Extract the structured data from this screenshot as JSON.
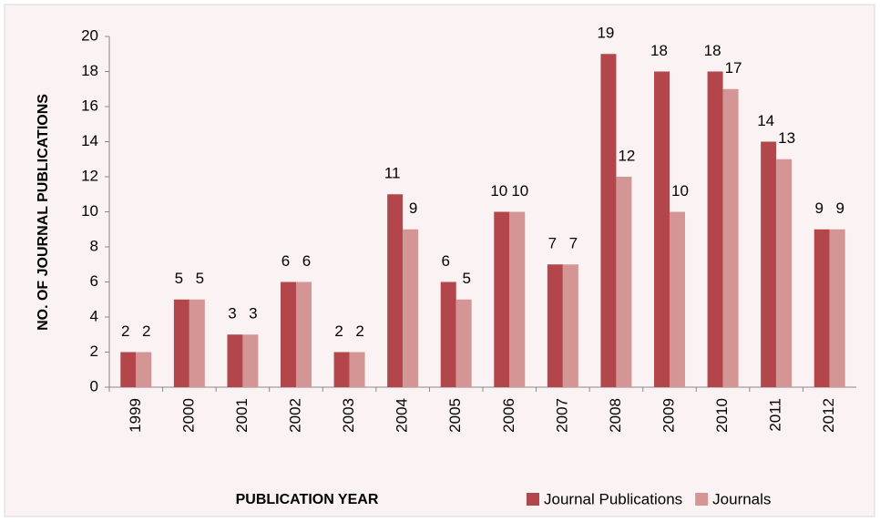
{
  "chart_data": {
    "type": "bar",
    "y_axis_label": "NO. OF JOURNAL PUBLICATIONS",
    "x_axis_label": "PUBLICATION YEAR",
    "categories": [
      "1999",
      "2000",
      "2001",
      "2002",
      "2003",
      "2004",
      "2005",
      "2006",
      "2007",
      "2008",
      "2009",
      "2010",
      "2011",
      "2012"
    ],
    "series": [
      {
        "name": "Journal Publications",
        "color": "#b3464a",
        "values": [
          2,
          5,
          3,
          6,
          2,
          11,
          6,
          10,
          7,
          19,
          18,
          18,
          14,
          9
        ]
      },
      {
        "name": "Journals",
        "color": "#d49694",
        "values": [
          2,
          5,
          3,
          6,
          2,
          9,
          5,
          10,
          7,
          12,
          10,
          17,
          13,
          9
        ]
      }
    ],
    "ylim": [
      0,
      20
    ],
    "yticks": [
      0,
      2,
      4,
      6,
      8,
      10,
      12,
      14,
      16,
      18,
      20
    ],
    "grid": false,
    "legend": "bottom-right"
  }
}
